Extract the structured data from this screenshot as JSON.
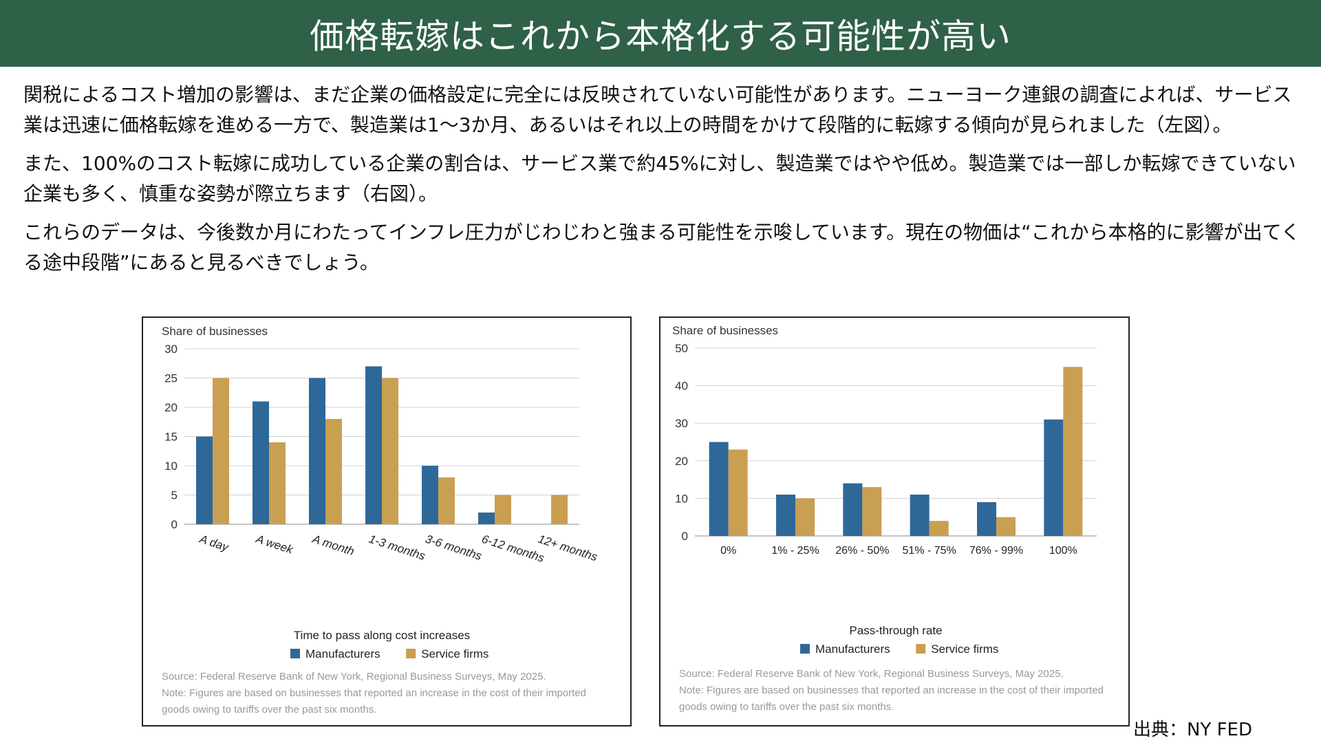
{
  "header": {
    "title": "価格転嫁はこれから本格化する可能性が高い"
  },
  "paragraphs": [
    "関税によるコスト増加の影響は、まだ企業の価格設定に完全には反映されていない可能性があります。ニューヨーク連銀の調査によれば、サービス業は迅速に価格転嫁を進める一方で、製造業は1〜3か月、あるいはそれ以上の時間をかけて段階的に転嫁する傾向が見られました（左図）。",
    "また、100%のコスト転嫁に成功している企業の割合は、サービス業で約45%に対し、製造業ではやや低め。製造業では一部しか転嫁できていない企業も多く、慎重な姿勢が際立ちます（右図）。",
    "これらのデータは、今後数か月にわたってインフレ圧力がじわじわと強まる可能性を示唆しています。現在の物価は“これから本格的に影響が出てくる途中段階”にあると見るべきでしょう。"
  ],
  "source_label": "出典：NY FED",
  "colors": {
    "header_bg": "#2f6048",
    "manufacturers": "#2e6899",
    "service": "#c99f52"
  },
  "chart_data": [
    {
      "type": "bar",
      "ylabel": "Share of businesses",
      "xlabel": "Time to pass along cost increases",
      "ylim": [
        0,
        30
      ],
      "yticks": [
        0,
        5,
        10,
        15,
        20,
        25,
        30
      ],
      "grid": true,
      "legend": "bottom",
      "categories": [
        "A day",
        "A week",
        "A month",
        "1-3 months",
        "3-6 months",
        "6-12 months",
        "12+ months"
      ],
      "series": [
        {
          "name": "Manufacturers",
          "color": "#2e6899",
          "values": [
            15,
            21,
            25,
            27,
            10,
            2,
            0
          ]
        },
        {
          "name": "Service firms",
          "color": "#c99f52",
          "values": [
            25,
            14,
            18,
            25,
            8,
            5,
            5
          ]
        }
      ],
      "notes": [
        "Source: Federal Reserve Bank of New York, Regional Business Surveys, May 2025.",
        "Note: Figures are based on businesses that reported an increase in the cost of their imported",
        "goods owing to tariffs over the past six months."
      ]
    },
    {
      "type": "bar",
      "ylabel": "Share of businesses",
      "xlabel": "Pass-through rate",
      "ylim": [
        0,
        50
      ],
      "yticks": [
        0,
        10,
        20,
        30,
        40,
        50
      ],
      "grid": true,
      "legend": "bottom",
      "categories": [
        "0%",
        "1% - 25%",
        "26% - 50%",
        "51% - 75%",
        "76% - 99%",
        "100%"
      ],
      "series": [
        {
          "name": "Manufacturers",
          "color": "#2e6899",
          "values": [
            25,
            11,
            14,
            11,
            9,
            31
          ]
        },
        {
          "name": "Service firms",
          "color": "#c99f52",
          "values": [
            23,
            10,
            13,
            4,
            5,
            45
          ]
        }
      ],
      "notes": [
        "Source: Federal Reserve Bank of New York, Regional Business Surveys, May 2025.",
        "Note: Figures are based on businesses that reported an increase in the cost of their imported",
        "goods owing to tariffs over the past six months."
      ]
    }
  ]
}
